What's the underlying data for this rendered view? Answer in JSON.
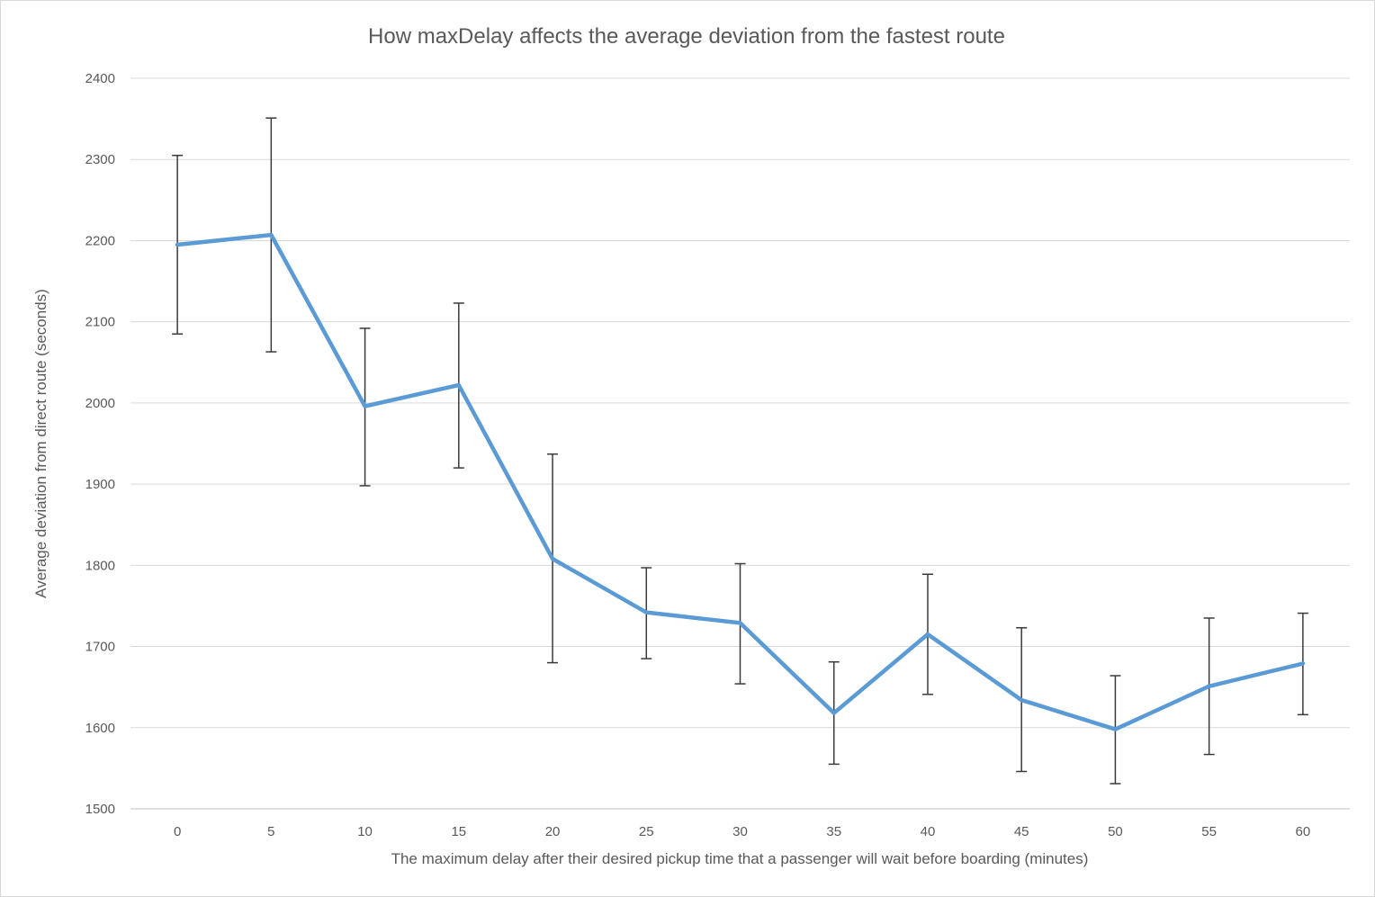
{
  "chart_data": {
    "type": "line",
    "title": "How maxDelay affects the average deviation from the fastest route",
    "xlabel": "The maximum delay after their desired pickup time that a passenger will wait before boarding (minutes)",
    "ylabel": "Average deviation from direct route (seconds)",
    "categories": [
      "0",
      "5",
      "10",
      "15",
      "20",
      "25",
      "30",
      "35",
      "40",
      "45",
      "50",
      "55",
      "60"
    ],
    "series": [
      {
        "values": [
          2195,
          2207,
          1996,
          2022,
          1808,
          1742,
          1729,
          1618,
          1715,
          1634,
          1598,
          1651,
          1679
        ],
        "error_high": [
          2305,
          2351,
          2092,
          2123,
          1937,
          1797,
          1802,
          1681,
          1789,
          1723,
          1664,
          1735,
          1741
        ],
        "error_low": [
          2085,
          2063,
          1898,
          1920,
          1680,
          1685,
          1654,
          1555,
          1641,
          1546,
          1531,
          1567,
          1616
        ],
        "color": "#5b9bd5"
      }
    ],
    "ylim": [
      1500,
      2400
    ],
    "yticks": [
      1500,
      1600,
      1700,
      1800,
      1900,
      2000,
      2100,
      2200,
      2300,
      2400
    ],
    "grid": true,
    "legend": "none"
  }
}
